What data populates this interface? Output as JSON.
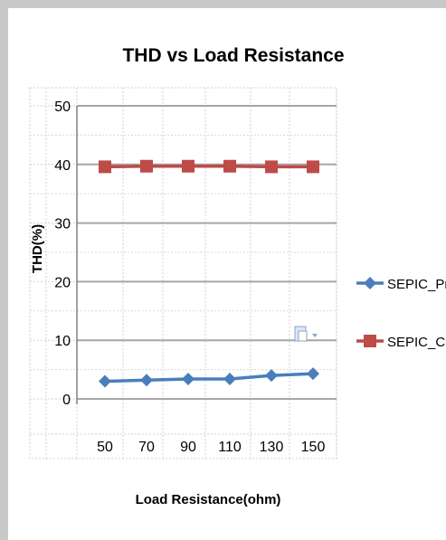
{
  "chart_data": {
    "type": "line",
    "title": "THD vs Load Resistance",
    "xlabel": "Load Resistance(ohm)",
    "ylabel": "THD(%)",
    "categories": [
      "50",
      "70",
      "90",
      "110",
      "130",
      "150"
    ],
    "ylim": [
      0,
      50
    ],
    "yticks": [
      0,
      10,
      20,
      30,
      40,
      50
    ],
    "grid": true,
    "legend_position": "right",
    "series": [
      {
        "name": "SEPIC_Pro",
        "values": [
          3.0,
          3.2,
          3.4,
          3.4,
          4.0,
          4.3
        ],
        "color": "#4a7ebb",
        "marker": "diamond"
      },
      {
        "name": "SEPIC_Con",
        "values": [
          39.6,
          39.7,
          39.7,
          39.7,
          39.6,
          39.6
        ],
        "color": "#be4b48",
        "marker": "square"
      }
    ]
  }
}
